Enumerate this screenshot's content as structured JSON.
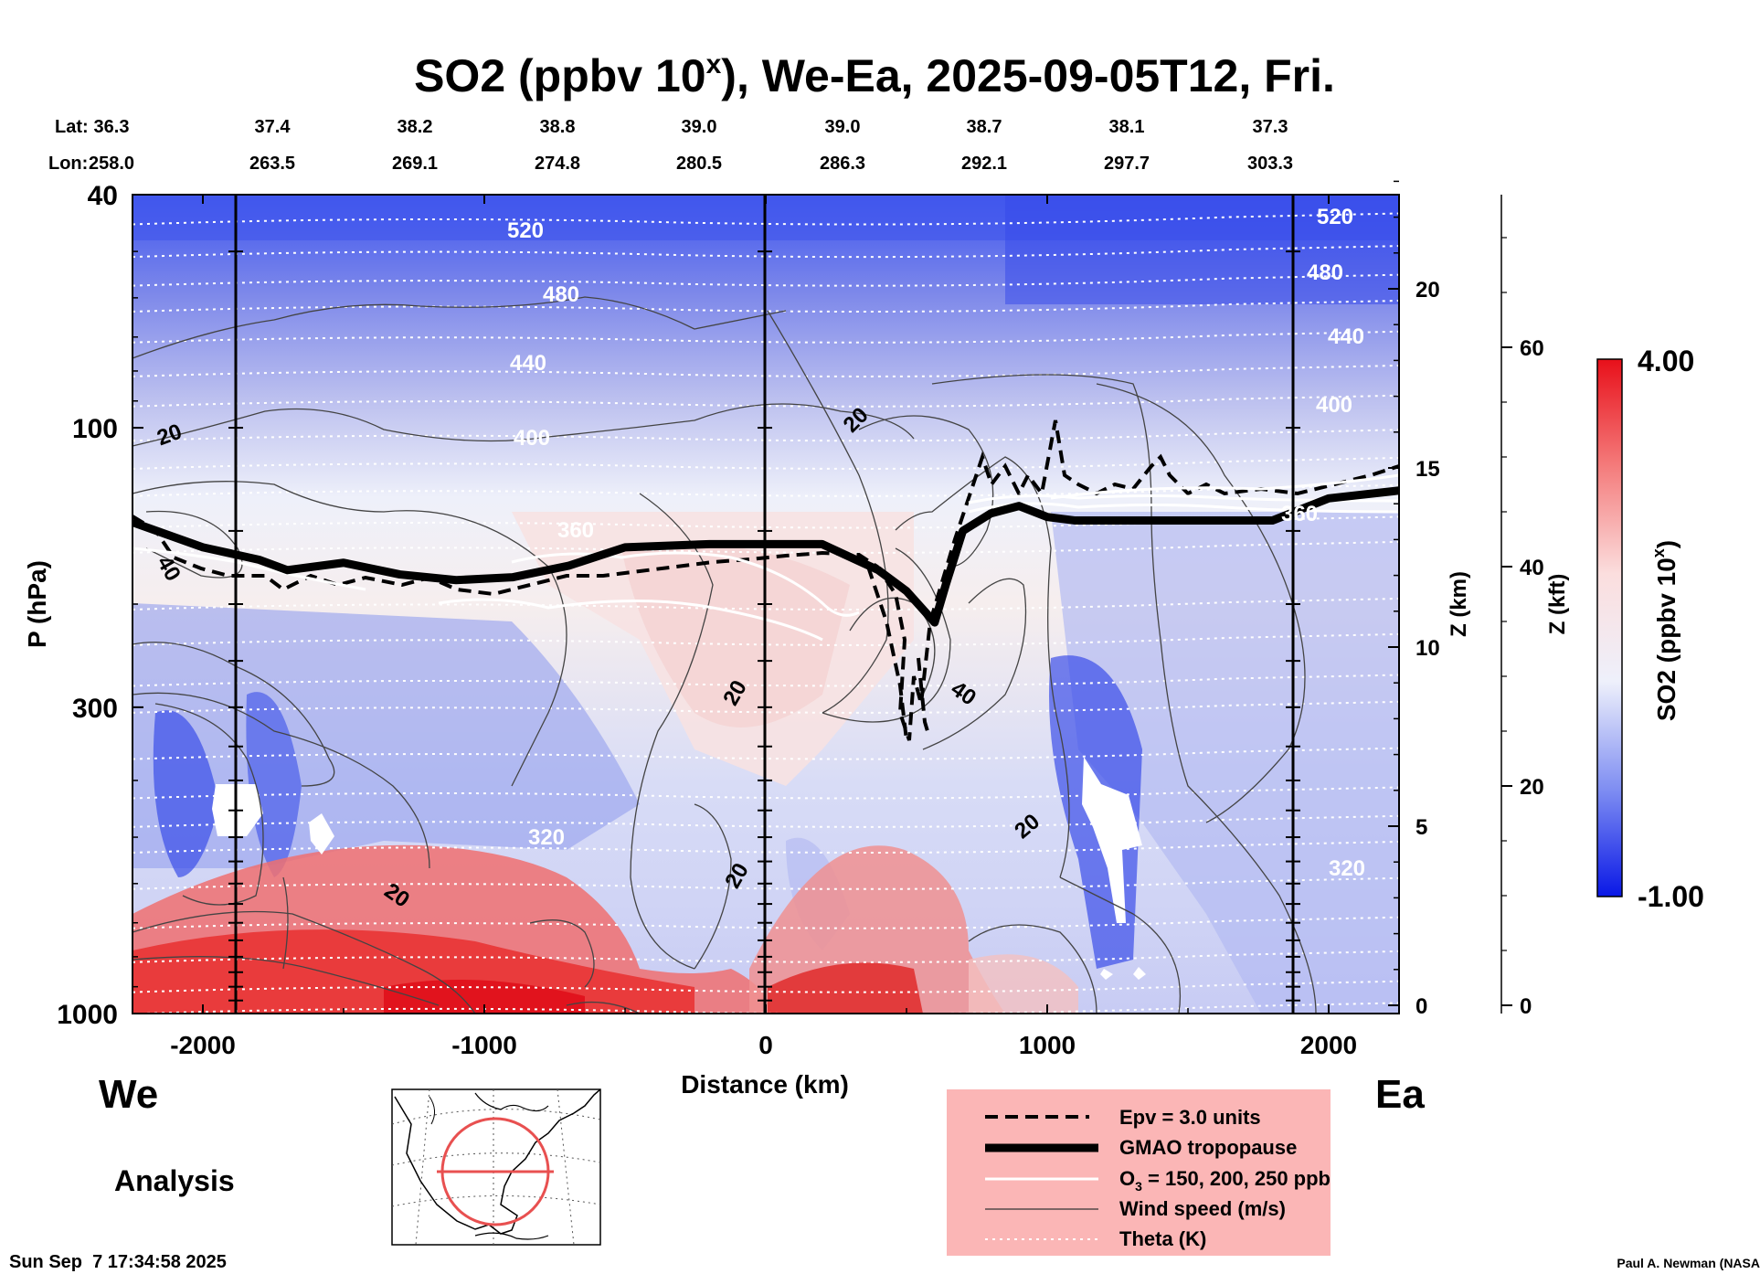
{
  "chart_data": {
    "type": "heatmap",
    "title": "SO2 (ppbv 10",
    "title_sup": "x",
    "title_rest": "), We-Ea, 2025-09-05T12, Fri.",
    "xlabel": "Distance (km)",
    "ylabel": "P (hPa)",
    "zlabel": "Z (km)",
    "zkft_label": "Z (kft)",
    "colorbar_label": "SO2 (ppbv 10",
    "colorbar_label_sup": "x",
    "colorbar_label_end": ")",
    "colorbar_max": "4.00",
    "colorbar_min": "-1.00",
    "colorbar_range": [
      -1.0,
      4.0
    ],
    "xlim": [
      -2250,
      2250
    ],
    "ylim_hpa": [
      1000,
      40
    ],
    "x_ticks": [
      {
        "value": -2000,
        "label": "-2000"
      },
      {
        "value": -1000,
        "label": "-1000"
      },
      {
        "value": 0,
        "label": "0"
      },
      {
        "value": 1000,
        "label": "1000"
      },
      {
        "value": 2000,
        "label": "2000"
      }
    ],
    "p_ticks": [
      {
        "value": 40,
        "label": "40"
      },
      {
        "value": 100,
        "label": "100"
      },
      {
        "value": 300,
        "label": "300"
      },
      {
        "value": 1000,
        "label": "1000"
      }
    ],
    "z_ticks": [
      {
        "value": 20,
        "label": "20"
      },
      {
        "value": 15,
        "label": "15"
      },
      {
        "value": 10,
        "label": "10"
      },
      {
        "value": 5,
        "label": "5"
      },
      {
        "value": 0,
        "label": "0"
      }
    ],
    "kft_ticks": [
      {
        "value": 60,
        "label": "60"
      },
      {
        "value": 40,
        "label": "40"
      },
      {
        "value": 20,
        "label": "20"
      },
      {
        "value": 0,
        "label": "0"
      }
    ],
    "lat_label": "Lat:",
    "lon_label": "Lon:",
    "lat": [
      "36.3",
      "37.4",
      "38.2",
      "38.8",
      "39.0",
      "39.0",
      "38.7",
      "38.1",
      "37.3"
    ],
    "lon": [
      "258.0",
      "263.5",
      "269.1",
      "274.8",
      "280.5",
      "286.3",
      "292.1",
      "297.7",
      "303.3"
    ],
    "theta_contours": [
      {
        "label": "520",
        "p": 47
      },
      {
        "label": "480",
        "p": 62
      },
      {
        "label": "440",
        "p": 80
      },
      {
        "label": "400",
        "p": 103
      },
      {
        "label": "360",
        "p": 150
      },
      {
        "label": "320",
        "p": 420
      }
    ],
    "theta_labels_right": [
      "520",
      "480",
      "440",
      "400",
      "360",
      "320"
    ],
    "wind_labels": [
      "20",
      "40",
      "20",
      "20",
      "40",
      "20",
      "20",
      "20"
    ],
    "tropopause_hpa": [
      [
        -2250,
        145
      ],
      [
        -2000,
        160
      ],
      [
        -1800,
        168
      ],
      [
        -1700,
        175
      ],
      [
        -1500,
        170
      ],
      [
        -1300,
        178
      ],
      [
        -1100,
        182
      ],
      [
        -900,
        180
      ],
      [
        -700,
        172
      ],
      [
        -500,
        160
      ],
      [
        -200,
        158
      ],
      [
        0,
        158
      ],
      [
        200,
        158
      ],
      [
        400,
        175
      ],
      [
        500,
        190
      ],
      [
        600,
        215
      ],
      [
        640,
        185
      ],
      [
        700,
        150
      ],
      [
        800,
        140
      ],
      [
        900,
        136
      ],
      [
        1000,
        142
      ],
      [
        1100,
        144
      ],
      [
        1500,
        144
      ],
      [
        1800,
        144
      ],
      [
        2000,
        132
      ],
      [
        2250,
        128
      ]
    ],
    "side_labels": {
      "west": "We",
      "east": "Ea",
      "mode": "Analysis"
    },
    "legend": [
      {
        "label": "Epv = 3.0 units",
        "style": "dashed"
      },
      {
        "label": "GMAO tropopause",
        "style": "thick"
      },
      {
        "label": "O",
        "sub": "3",
        "rest": " = 150, 200, 250 ppb",
        "style": "white"
      },
      {
        "label": "Wind speed (m/s)",
        "style": "thin"
      },
      {
        "label": "Theta (K)",
        "style": "dotted"
      }
    ],
    "timestamp": "Sun Sep  7 17:34:58 2025",
    "credit": "Paul A. Newman (NASA"
  },
  "colors": {
    "positive": "#e8141c",
    "negative": "#1a2ee8",
    "legend_bg": "#fbb6b6",
    "map_circle": "#e85050"
  }
}
